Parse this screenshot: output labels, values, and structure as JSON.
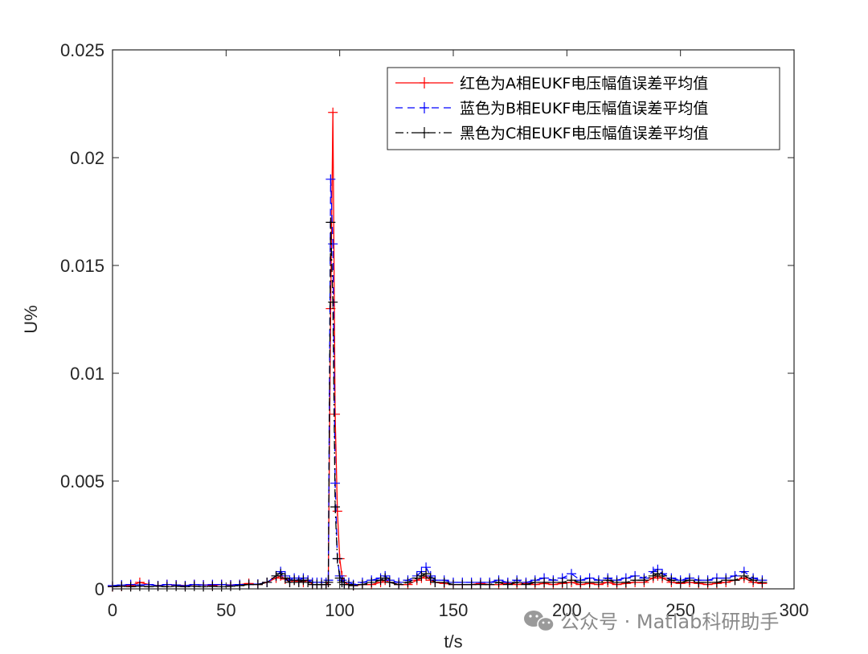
{
  "chart_data": {
    "type": "line",
    "xlabel": "t/s",
    "ylabel": "U%",
    "xlim": [
      0,
      300
    ],
    "ylim": [
      0,
      0.025
    ],
    "xticks": [
      0,
      50,
      100,
      150,
      200,
      250,
      300
    ],
    "xtick_labels": [
      "0",
      "50",
      "100",
      "150",
      "200",
      "250",
      "300"
    ],
    "yticks": [
      0,
      0.005,
      0.01,
      0.015,
      0.02,
      0.025
    ],
    "ytick_labels": [
      "0",
      "0.005",
      "0.01",
      "0.015",
      "0.02",
      "0.025"
    ],
    "grid": false,
    "legend_position": "top-right",
    "series": [
      {
        "name": "红色为A相EUKF电压幅值误差平均值",
        "color": "#ff0000",
        "line_style": "solid",
        "marker": "+",
        "x": [
          0,
          4,
          8,
          12,
          16,
          20,
          24,
          28,
          32,
          36,
          40,
          44,
          48,
          52,
          56,
          60,
          64,
          68,
          72,
          74,
          76,
          78,
          80,
          82,
          84,
          86,
          88,
          90,
          92,
          94,
          95,
          96,
          97,
          98,
          99,
          100,
          101,
          102,
          104,
          106,
          110,
          114,
          118,
          120,
          122,
          126,
          130,
          134,
          136,
          138,
          140,
          142,
          146,
          150,
          154,
          158,
          162,
          166,
          170,
          174,
          178,
          182,
          186,
          190,
          194,
          198,
          202,
          206,
          210,
          214,
          218,
          222,
          226,
          230,
          234,
          238,
          240,
          242,
          246,
          250,
          254,
          258,
          262,
          266,
          270,
          274,
          278,
          282,
          286
        ],
        "y": [
          0.0001,
          0.00012,
          0.00015,
          0.0003,
          0.0002,
          0.00015,
          0.0002,
          0.00018,
          0.00015,
          0.0002,
          0.00018,
          0.00015,
          0.0002,
          0.00018,
          0.0002,
          0.00025,
          0.0002,
          0.0003,
          0.0005,
          0.0006,
          0.00045,
          0.0003,
          0.0004,
          0.00035,
          0.0003,
          0.0004,
          0.0002,
          0.0002,
          0.0002,
          0.0002,
          0.0003,
          0.013,
          0.0221,
          0.0081,
          0.0036,
          0.0014,
          0.0006,
          0.0003,
          0.0002,
          0.00015,
          0.0002,
          0.0002,
          0.0003,
          0.0004,
          0.0003,
          0.0002,
          0.0002,
          0.0004,
          0.0005,
          0.0006,
          0.0004,
          0.0003,
          0.00025,
          0.0002,
          0.0002,
          0.0002,
          0.00025,
          0.0002,
          0.0002,
          0.00025,
          0.0002,
          0.00025,
          0.0002,
          0.00025,
          0.0002,
          0.00025,
          0.0003,
          0.0002,
          0.00025,
          0.0002,
          0.0003,
          0.0002,
          0.00025,
          0.0003,
          0.0003,
          0.0005,
          0.0006,
          0.0005,
          0.0003,
          0.00025,
          0.0003,
          0.00025,
          0.0002,
          0.00025,
          0.0003,
          0.0004,
          0.0005,
          0.0003,
          0.00025
        ]
      },
      {
        "name": "蓝色为B相EUKF电压幅值误差平均值",
        "color": "#0000ff",
        "line_style": "dashed",
        "marker": "+",
        "x": [
          0,
          4,
          8,
          12,
          16,
          20,
          24,
          28,
          32,
          36,
          40,
          44,
          48,
          52,
          56,
          60,
          64,
          68,
          72,
          74,
          76,
          78,
          80,
          82,
          84,
          86,
          88,
          90,
          92,
          94,
          95,
          96,
          97,
          98,
          99,
          100,
          101,
          102,
          104,
          106,
          110,
          114,
          118,
          120,
          122,
          126,
          130,
          134,
          136,
          138,
          140,
          142,
          146,
          150,
          154,
          158,
          162,
          166,
          170,
          174,
          178,
          182,
          186,
          190,
          194,
          198,
          202,
          206,
          210,
          214,
          218,
          222,
          226,
          230,
          234,
          238,
          240,
          242,
          246,
          250,
          254,
          258,
          262,
          266,
          270,
          274,
          278,
          282,
          286
        ],
        "y": [
          0.00015,
          0.00018,
          0.0002,
          0.00018,
          0.0002,
          0.00015,
          0.0002,
          0.00018,
          0.00015,
          0.0002,
          0.00018,
          0.0002,
          0.0002,
          0.00018,
          0.0002,
          0.0002,
          0.00022,
          0.0003,
          0.0006,
          0.0008,
          0.0006,
          0.0004,
          0.0005,
          0.0004,
          0.0005,
          0.0004,
          0.0003,
          0.0003,
          0.0003,
          0.0003,
          0.0004,
          0.019,
          0.016,
          0.0049,
          0.0014,
          0.0006,
          0.0004,
          0.0003,
          0.0003,
          0.0002,
          0.0003,
          0.0004,
          0.0005,
          0.0006,
          0.0004,
          0.0003,
          0.0004,
          0.0006,
          0.0008,
          0.001,
          0.0006,
          0.0004,
          0.0004,
          0.0003,
          0.0003,
          0.0003,
          0.0003,
          0.0003,
          0.0004,
          0.0003,
          0.0004,
          0.0003,
          0.0004,
          0.0005,
          0.0004,
          0.0005,
          0.0007,
          0.0004,
          0.0005,
          0.0004,
          0.0005,
          0.0004,
          0.0005,
          0.0006,
          0.0005,
          0.0008,
          0.0009,
          0.0007,
          0.0005,
          0.0004,
          0.0005,
          0.0004,
          0.0004,
          0.0005,
          0.0005,
          0.0006,
          0.0008,
          0.0005,
          0.0004
        ]
      },
      {
        "name": "黑色为C相EUKF电压幅值误差平均值",
        "color": "#000000",
        "line_style": "dashdot",
        "marker": "+",
        "x": [
          0,
          4,
          8,
          12,
          16,
          20,
          24,
          28,
          32,
          36,
          40,
          44,
          48,
          52,
          56,
          60,
          64,
          68,
          72,
          74,
          76,
          78,
          80,
          82,
          84,
          86,
          88,
          90,
          92,
          94,
          95,
          96,
          97,
          98,
          99,
          100,
          101,
          102,
          104,
          106,
          110,
          114,
          118,
          120,
          122,
          126,
          130,
          134,
          136,
          138,
          140,
          142,
          146,
          150,
          154,
          158,
          162,
          166,
          170,
          174,
          178,
          182,
          186,
          190,
          194,
          198,
          202,
          206,
          210,
          214,
          218,
          222,
          226,
          230,
          234,
          238,
          240,
          242,
          246,
          250,
          254,
          258,
          262,
          266,
          270,
          274,
          278,
          282,
          286
        ],
        "y": [
          0.0001,
          0.00012,
          0.0001,
          0.00012,
          0.0001,
          0.00012,
          0.0001,
          0.00012,
          0.0001,
          0.00012,
          0.0001,
          0.00012,
          0.0001,
          0.00012,
          0.00015,
          0.0002,
          0.0002,
          0.0003,
          0.0006,
          0.0007,
          0.0005,
          0.0003,
          0.0004,
          0.0003,
          0.0004,
          0.0003,
          0.0002,
          0.0002,
          0.0002,
          0.0002,
          0.0003,
          0.017,
          0.0133,
          0.0038,
          0.0014,
          0.0005,
          0.0003,
          0.0002,
          0.0002,
          0.00015,
          0.0002,
          0.0003,
          0.0004,
          0.0005,
          0.0003,
          0.0002,
          0.0003,
          0.0005,
          0.0006,
          0.0007,
          0.0005,
          0.0003,
          0.0003,
          0.0002,
          0.0002,
          0.0002,
          0.0002,
          0.0002,
          0.0003,
          0.0002,
          0.0003,
          0.0002,
          0.0003,
          0.0003,
          0.0003,
          0.0003,
          0.0004,
          0.0003,
          0.0003,
          0.0003,
          0.0004,
          0.0003,
          0.0003,
          0.0004,
          0.0004,
          0.0006,
          0.0007,
          0.0006,
          0.0004,
          0.0003,
          0.0004,
          0.0003,
          0.0003,
          0.0003,
          0.0004,
          0.0004,
          0.0006,
          0.0004,
          0.0003
        ]
      }
    ]
  },
  "watermark": {
    "text": "公众号 · Matlab科研助手"
  }
}
